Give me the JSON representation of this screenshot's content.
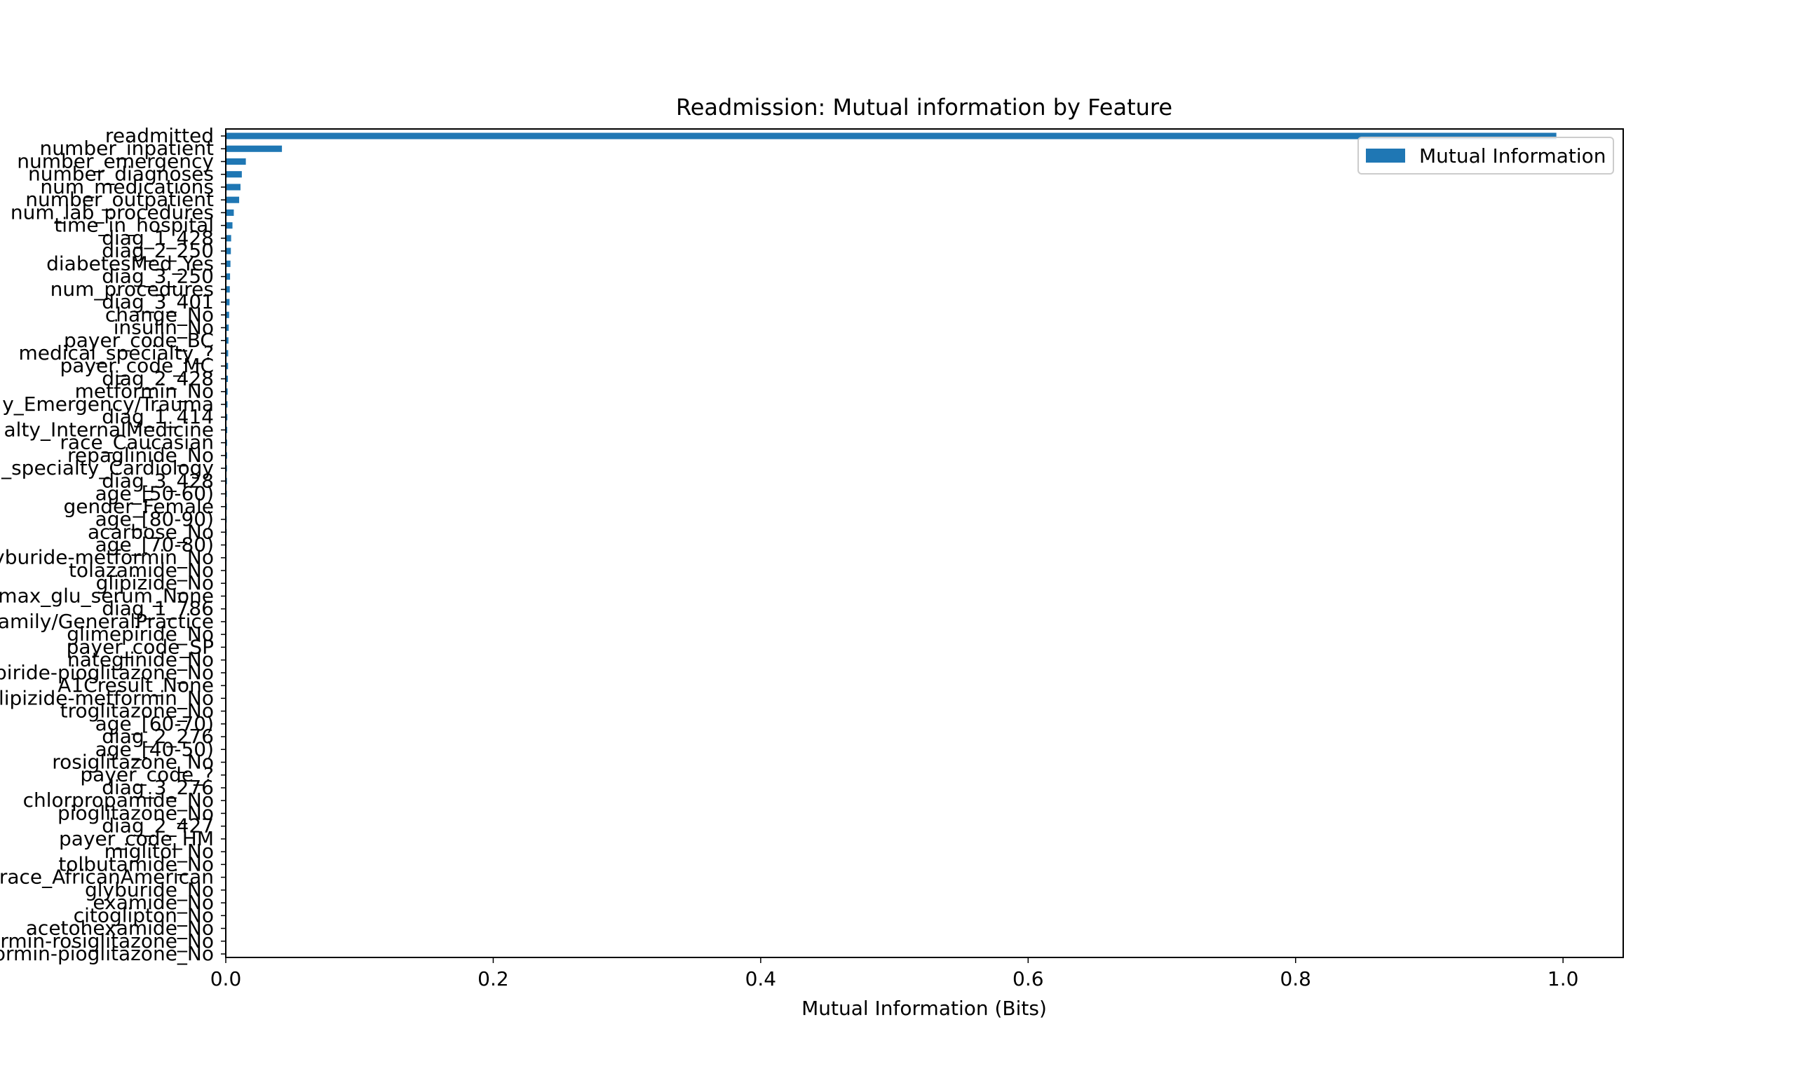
{
  "chart_data": {
    "type": "bar",
    "orientation": "horizontal",
    "title": "Readmission: Mutual information by Feature",
    "xlabel": "Mutual Information (Bits)",
    "ylabel": "",
    "xlim": [
      0,
      1.045
    ],
    "xticks": [
      "0.0",
      "0.2",
      "0.4",
      "0.6",
      "0.8",
      "1.0"
    ],
    "grid": false,
    "legend_position": "upper right",
    "color": "#1f77b4",
    "series": [
      {
        "name": "Mutual Information"
      }
    ],
    "categories": [
      "readmitted",
      "number_inpatient",
      "number_emergency",
      "number_diagnoses",
      "num_medications",
      "number_outpatient",
      "num_lab_procedures",
      "time_in_hospital",
      "diag_1_428",
      "diag_2_250",
      "diabetesMed_Yes",
      "diag_3_250",
      "num_procedures",
      "diag_3_401",
      "change_No",
      "insulin_No",
      "payer_code_BC",
      "medical_specialty_?",
      "payer_code_MC",
      "diag_2_428",
      "metformin_No",
      "y_Emergency/Trauma",
      "diag_1_414",
      "alty_InternalMedicine",
      "race_Caucasian",
      "repaglinide_No",
      "_specialty_Cardiology",
      "diag_3_428",
      "age_[50-60)",
      "gender_Female",
      "age_[80-90)",
      "acarbose_No",
      "age_[70-80)",
      "yburide-metformin_No",
      "tolazamide_No",
      "glipizide_No",
      "max_glu_serum_None",
      "diag_1_786",
      "amily/GeneralPractice",
      "glimepiride_No",
      "payer_code_SP",
      "nateglinide_No",
      "piride-pioglitazone_No",
      "A1Cresult_None",
      "lipizide-metformin_No",
      "troglitazone_No",
      "age_[60-70)",
      "diag_2_276",
      "age_[40-50)",
      "rosiglitazone_No",
      "payer_code_?",
      "diag_3_276",
      "chlorpropamide_No",
      "pioglitazone_No",
      "diag_2_427",
      "payer_code_HM",
      "miglitol_No",
      "tolbutamide_No",
      "race_AfricanAmerican",
      "glyburide_No",
      "examide_No",
      "citoglipton_No",
      "acetohexamide_No",
      "rmin-rosiglitazone_No",
      "ormin-pioglitazone_No"
    ],
    "values": [
      0.995,
      0.042,
      0.015,
      0.012,
      0.011,
      0.01,
      0.006,
      0.005,
      0.004,
      0.0038,
      0.0035,
      0.0032,
      0.003,
      0.0028,
      0.0025,
      0.0022,
      0.002,
      0.0018,
      0.0017,
      0.0016,
      0.0014,
      0.0013,
      0.0012,
      0.0011,
      0.001,
      0.001,
      0.0009,
      0.0009,
      0.0008,
      0.0008,
      0.0007,
      0.0007,
      0.0006,
      0.0006,
      0.0005,
      0.0005,
      0.0005,
      0.0004,
      0.0004,
      0.0004,
      0.0003,
      0.0003,
      0.0003,
      0.0003,
      0.0002,
      0.0002,
      0.0002,
      0.0002,
      0.0002,
      0.0001,
      0.0001,
      0.0001,
      0.0001,
      0.0001,
      0.0001,
      0.0001,
      0.0001,
      0.0001,
      0.0001,
      0.0,
      0.0,
      0.0,
      0.0,
      0.0,
      0.0
    ]
  }
}
